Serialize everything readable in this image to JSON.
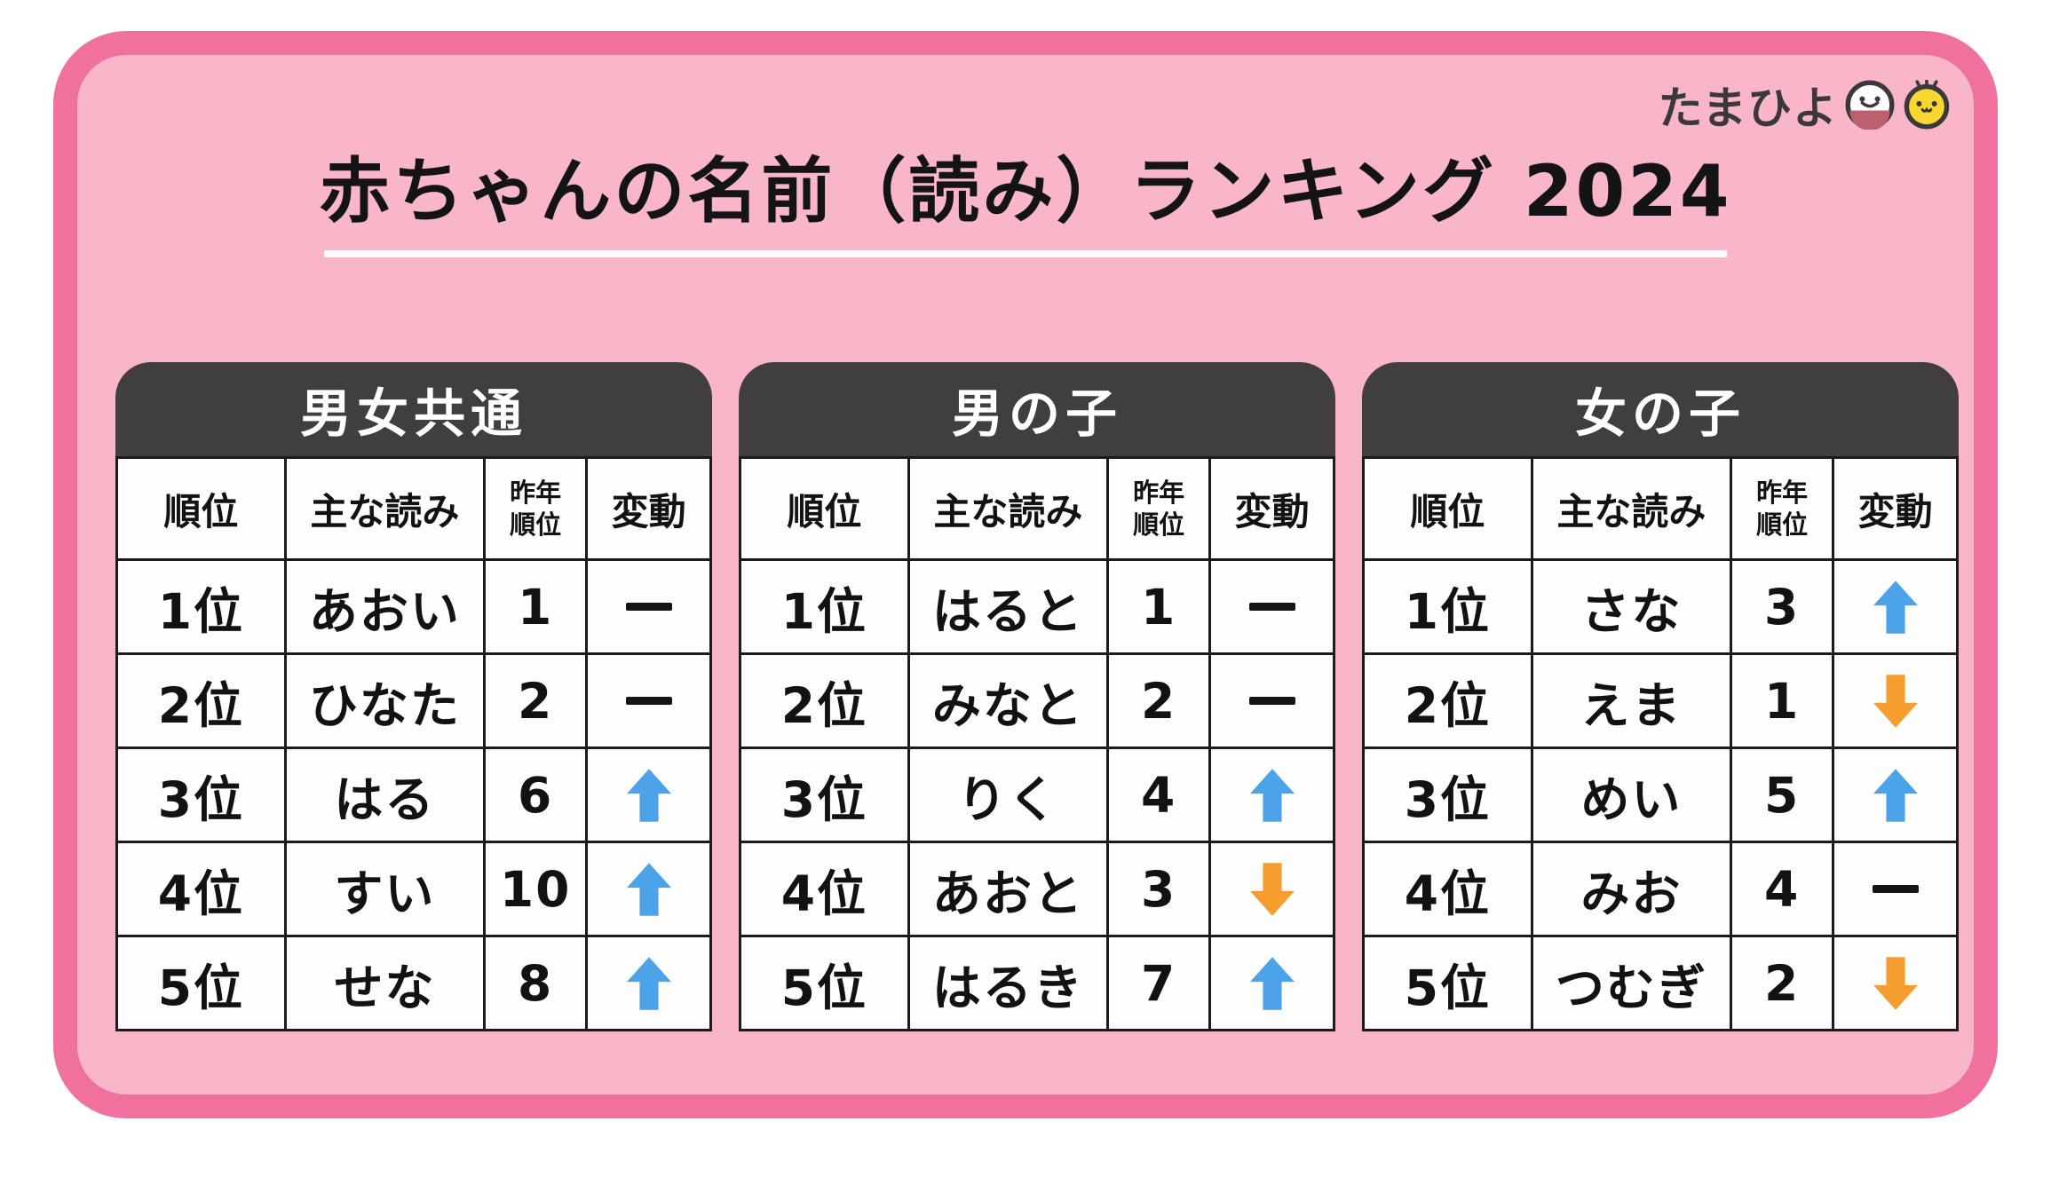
{
  "logo": {
    "text": "たまひよ",
    "egg_icon": "egg-face-icon",
    "chick_icon": "chick-face-icon"
  },
  "title": "赤ちゃんの名前（読み）ランキング 2024",
  "chart_data": [
    {
      "type": "table",
      "title": "男女共通",
      "columns": [
        "順位",
        "主な読み",
        "昨年\n順位",
        "変動"
      ],
      "rows": [
        {
          "rank": "1位",
          "reading": "あおい",
          "last_year": "1",
          "change": "level"
        },
        {
          "rank": "2位",
          "reading": "ひなた",
          "last_year": "2",
          "change": "level"
        },
        {
          "rank": "3位",
          "reading": "はる",
          "last_year": "6",
          "change": "up"
        },
        {
          "rank": "4位",
          "reading": "すい",
          "last_year": "10",
          "change": "up"
        },
        {
          "rank": "5位",
          "reading": "せな",
          "last_year": "8",
          "change": "up"
        }
      ]
    },
    {
      "type": "table",
      "title": "男の子",
      "columns": [
        "順位",
        "主な読み",
        "昨年\n順位",
        "変動"
      ],
      "rows": [
        {
          "rank": "1位",
          "reading": "はると",
          "last_year": "1",
          "change": "level"
        },
        {
          "rank": "2位",
          "reading": "みなと",
          "last_year": "2",
          "change": "level"
        },
        {
          "rank": "3位",
          "reading": "りく",
          "last_year": "4",
          "change": "up"
        },
        {
          "rank": "4位",
          "reading": "あおと",
          "last_year": "3",
          "change": "down"
        },
        {
          "rank": "5位",
          "reading": "はるき",
          "last_year": "7",
          "change": "up"
        }
      ]
    },
    {
      "type": "table",
      "title": "女の子",
      "columns": [
        "順位",
        "主な読み",
        "昨年\n順位",
        "変動"
      ],
      "rows": [
        {
          "rank": "1位",
          "reading": "さな",
          "last_year": "3",
          "change": "up"
        },
        {
          "rank": "2位",
          "reading": "えま",
          "last_year": "1",
          "change": "down"
        },
        {
          "rank": "3位",
          "reading": "めい",
          "last_year": "5",
          "change": "up"
        },
        {
          "rank": "4位",
          "reading": "みお",
          "last_year": "4",
          "change": "level"
        },
        {
          "rank": "5位",
          "reading": "つむぎ",
          "last_year": "2",
          "change": "down"
        }
      ]
    }
  ],
  "colors": {
    "frame_border": "#f0709e",
    "frame_background": "#fab6c9",
    "table_header_background": "#413e3e",
    "up_arrow": "#4da3e8",
    "down_arrow": "#f59d2f",
    "no_change_dash": "#151515",
    "chick_yellow": "#f7d832",
    "egg_bottom_rose": "#bc5f6e"
  }
}
